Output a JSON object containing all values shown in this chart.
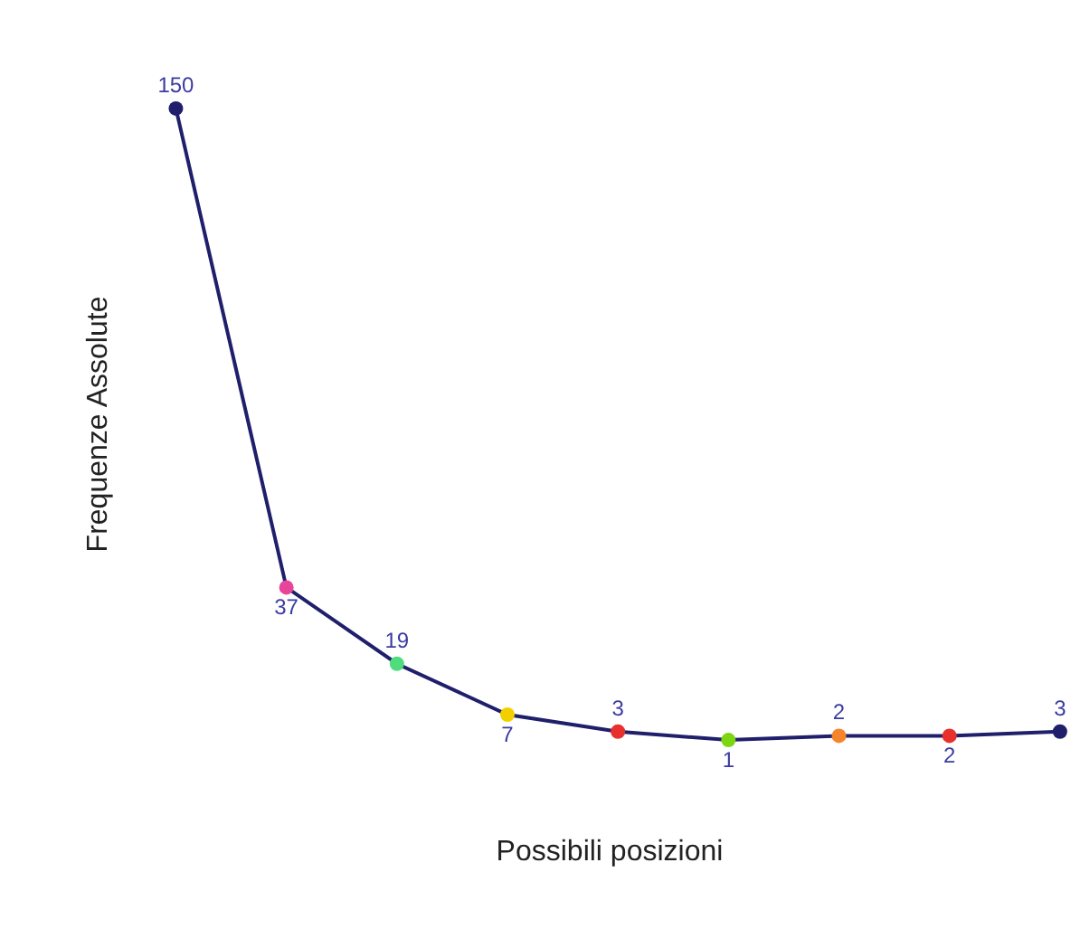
{
  "chart_data": {
    "type": "line",
    "xlabel": "Possibili posizioni",
    "ylabel": "Frequenze Assolute",
    "categories": [
      null,
      null,
      null,
      null,
      null,
      null,
      null,
      null,
      null
    ],
    "values": [
      150,
      37,
      19,
      7,
      3,
      1,
      2,
      2,
      3
    ],
    "color": "#1f1f6b",
    "colors": [
      "#1f1f6b",
      "#e8449a",
      "#4fdc7c",
      "#f2d000",
      "#e8302c",
      "#7cd614",
      "#f5852a",
      "#e8302c",
      "#1f1f6b"
    ],
    "marker": "circle",
    "data_labels": true,
    "grid": false
  }
}
